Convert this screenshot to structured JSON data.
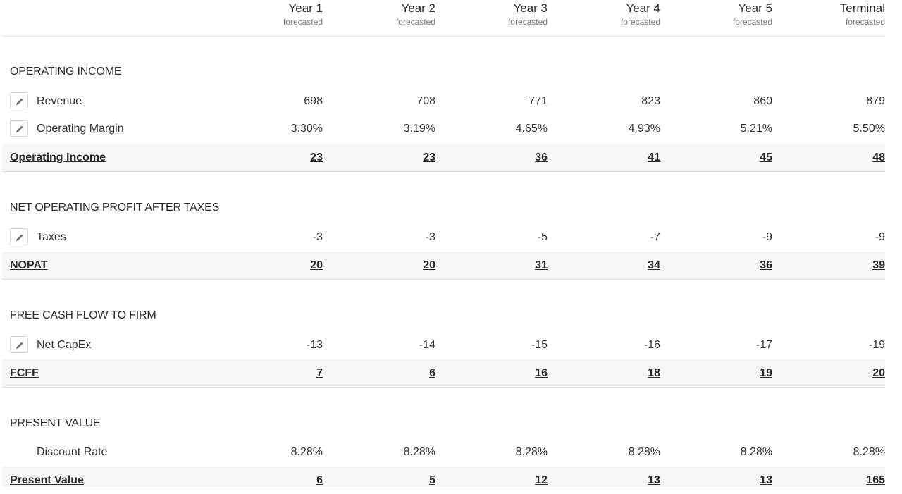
{
  "columns": [
    {
      "year": "Year 1",
      "sub": "forecasted"
    },
    {
      "year": "Year 2",
      "sub": "forecasted"
    },
    {
      "year": "Year 3",
      "sub": "forecasted"
    },
    {
      "year": "Year 4",
      "sub": "forecasted"
    },
    {
      "year": "Year 5",
      "sub": "forecasted"
    },
    {
      "year": "Terminal",
      "sub": "forecasted"
    }
  ],
  "sections": [
    {
      "title": "OPERATING INCOME",
      "rows": [
        {
          "label": "Revenue",
          "editable": true,
          "values": [
            "698",
            "708",
            "771",
            "823",
            "860",
            "879"
          ]
        },
        {
          "label": "Operating Margin",
          "editable": true,
          "values": [
            "3.30%",
            "3.19%",
            "4.65%",
            "4.93%",
            "5.21%",
            "5.50%"
          ]
        }
      ],
      "total": {
        "label": "Operating Income",
        "values": [
          "23",
          "23",
          "36",
          "41",
          "45",
          "48"
        ]
      }
    },
    {
      "title": "NET OPERATING PROFIT AFTER TAXES",
      "rows": [
        {
          "label": "Taxes",
          "editable": true,
          "values": [
            "-3",
            "-3",
            "-5",
            "-7",
            "-9",
            "-9"
          ]
        }
      ],
      "total": {
        "label": "NOPAT",
        "values": [
          "20",
          "20",
          "31",
          "34",
          "36",
          "39"
        ]
      }
    },
    {
      "title": "FREE CASH FLOW TO FIRM",
      "rows": [
        {
          "label": "Net CapEx",
          "editable": true,
          "values": [
            "-13",
            "-14",
            "-15",
            "-16",
            "-17",
            "-19"
          ]
        }
      ],
      "total": {
        "label": "FCFF",
        "values": [
          "7",
          "6",
          "16",
          "18",
          "19",
          "20"
        ]
      }
    },
    {
      "title": "PRESENT VALUE",
      "rows": [
        {
          "label": "Discount Rate",
          "editable": false,
          "values": [
            "8.28%",
            "8.28%",
            "8.28%",
            "8.28%",
            "8.28%",
            "8.28%"
          ]
        }
      ],
      "total": {
        "label": "Present Value",
        "values": [
          "6",
          "5",
          "12",
          "13",
          "13",
          "165"
        ]
      }
    }
  ],
  "icons": {
    "edit": "pencil-icon"
  }
}
